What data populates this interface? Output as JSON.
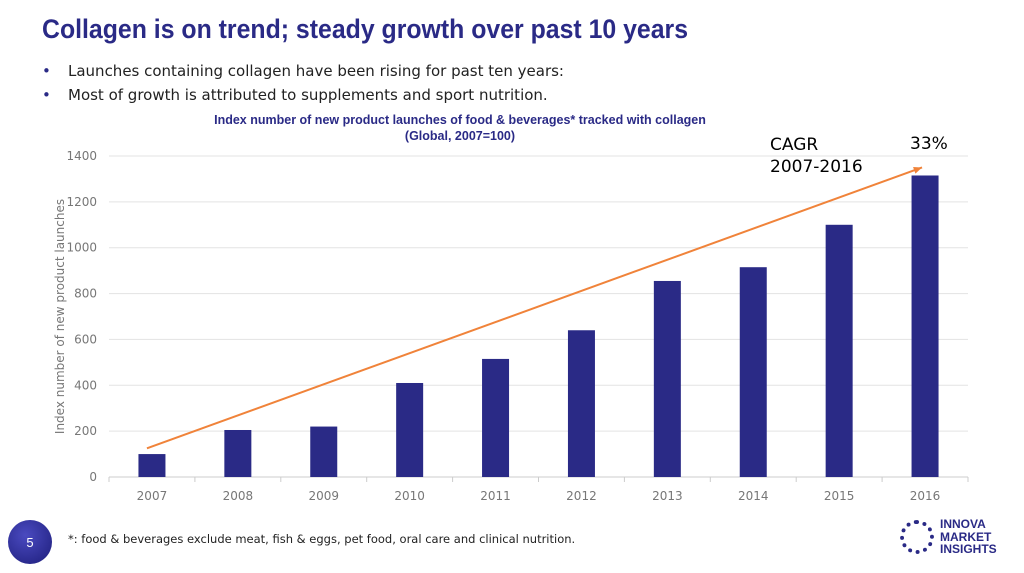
{
  "title": "Collagen is on trend; steady growth over past 10 years",
  "bullets": [
    "Launches containing collagen have been rising for past ten years:",
    "Most of growth is attributed to supplements and sport nutrition."
  ],
  "cagr": {
    "label1": "CAGR",
    "label2": "2007-2016",
    "value": "33%"
  },
  "footnote": "*: food & beverages exclude meat, fish & eggs, pet food, oral care and clinical nutrition.",
  "page_number": "5",
  "logo": {
    "line1": "INNOVA",
    "line2": "MARKET",
    "line3": "INSIGHTS"
  },
  "colors": {
    "bar": "#2a2a86",
    "trend": "#f0833a",
    "title": "#2a2a86"
  },
  "chart_data": {
    "type": "bar",
    "title": "Index number of new product launches of food & beverages* tracked with collagen",
    "subtitle": "(Global, 2007=100)",
    "ylabel": "Index number of new product launches",
    "xlabel": "",
    "ylim": [
      0,
      1400
    ],
    "yticks": [
      0,
      200,
      400,
      600,
      800,
      1000,
      1200,
      1400
    ],
    "grid": true,
    "categories": [
      "2007",
      "2008",
      "2009",
      "2010",
      "2011",
      "2012",
      "2013",
      "2014",
      "2015",
      "2016"
    ],
    "values": [
      100,
      205,
      220,
      410,
      515,
      640,
      855,
      915,
      1100,
      1315
    ],
    "trend_arrow": {
      "from": [
        "2007",
        125
      ],
      "to": [
        "2016",
        1350
      ]
    }
  }
}
